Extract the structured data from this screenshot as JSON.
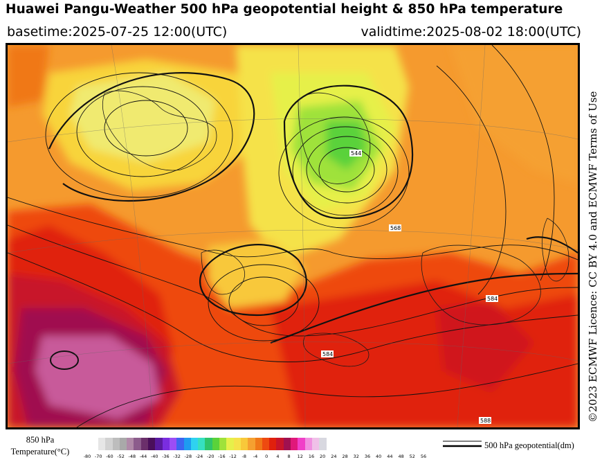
{
  "header": {
    "title": "Huawei Pangu-Weather 500 hPa geopotential height & 850 hPa temperature",
    "basetime": "basetime:2025-07-25 12:00(UTC)",
    "validtime": "validtime:2025-08-02 18:00(UTC)"
  },
  "licence": "©2023 ECMWF Licence: CC BY 4.0 and ECMWF Terms of Use",
  "colorbar": {
    "title_line1": "850 hPa",
    "title_line2": "Temperature(°C)",
    "ticks": [
      "-80",
      "-70",
      "-60",
      "-52",
      "-48",
      "-44",
      "-40",
      "-36",
      "-32",
      "-28",
      "-24",
      "-20",
      "-16",
      "-12",
      "-8",
      "-4",
      "0",
      "4",
      "8",
      "12",
      "16",
      "20",
      "24",
      "28",
      "32",
      "36",
      "40",
      "44",
      "48",
      "52",
      "56"
    ],
    "colors": [
      "#e6e6e6",
      "#d2d2d2",
      "#bdbdbd",
      "#a9a9a9",
      "#b08aa8",
      "#8c5c8c",
      "#6b2f6b",
      "#4a0f5a",
      "#5a1aa0",
      "#7a2de0",
      "#9b4df5",
      "#3c64f0",
      "#1e9bf0",
      "#2fd2f0",
      "#36e0c0",
      "#2ec46a",
      "#5ad23a",
      "#9fe23a",
      "#e6f04a",
      "#f5e24a",
      "#f8c83a",
      "#f5a030",
      "#f07818",
      "#ee4a10",
      "#e0200c",
      "#c8142a",
      "#a01050",
      "#e0187a",
      "#f040c8",
      "#f090e0",
      "#f0c0e8",
      "#d8d8e0"
    ]
  },
  "legend": {
    "label": "500 hPa geopotential(dm)"
  },
  "map": {
    "contour_labels": [
      "544",
      "568",
      "584",
      "584",
      "588"
    ]
  }
}
